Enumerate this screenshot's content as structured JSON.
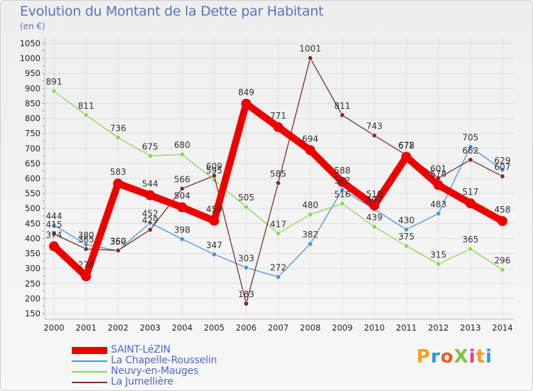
{
  "title": "Evolution du Montant de la Dette par Habitant",
  "subtitle": "(en €)",
  "brand": "ProXiti",
  "colors": {
    "axis_text": "#222222",
    "grid": "#dddddd",
    "axis_line": "#bdbdbd",
    "tick_mark": "#e05050",
    "value_label": "#333333",
    "legend_text": "#4f67c8"
  },
  "chart_data": {
    "type": "line",
    "title": "Evolution du Montant de la Dette par Habitant",
    "subtitle": "(en €)",
    "xlabel": "",
    "ylabel": "",
    "x": [
      "2000",
      "2001",
      "2002",
      "2003",
      "2004",
      "2005",
      "2006",
      "2007",
      "2008",
      "2009",
      "2010",
      "2011",
      "2012",
      "2013",
      "2014"
    ],
    "ylim": [
      150,
      1050
    ],
    "yticks": [
      150,
      200,
      250,
      300,
      350,
      400,
      450,
      500,
      550,
      600,
      650,
      700,
      750,
      800,
      850,
      900,
      950,
      1000,
      1050
    ],
    "grid": true,
    "legend_position": "bottom-left",
    "series": [
      {
        "name": "SAINT-LéZIN",
        "color": "#ee0000",
        "emphasis": true,
        "values": [
          374,
          274,
          583,
          544,
          504,
          459,
          849,
          771,
          694,
          588,
          510,
          672,
          578,
          517,
          458
        ]
      },
      {
        "name": "La Chapelle-Rousselin",
        "color": "#4d93d6",
        "emphasis": false,
        "values": [
          444,
          380,
          359,
          452,
          398,
          347,
          303,
          272,
          382,
          562,
          497,
          430,
          483,
          705,
          629
        ]
      },
      {
        "name": "Neuvy-en-Mauges",
        "color": "#8cd657",
        "emphasis": false,
        "values": [
          891,
          811,
          736,
          675,
          680,
          595,
          505,
          417,
          480,
          516,
          439,
          375,
          315,
          365,
          296
        ]
      },
      {
        "name": "La Jumellière",
        "color": "#7a2f2f",
        "emphasis": false,
        "values": [
          415,
          365,
          360,
          429,
          566,
          609,
          183,
          585,
          1001,
          811,
          743,
          678,
          601,
          662,
          607
        ]
      }
    ]
  }
}
